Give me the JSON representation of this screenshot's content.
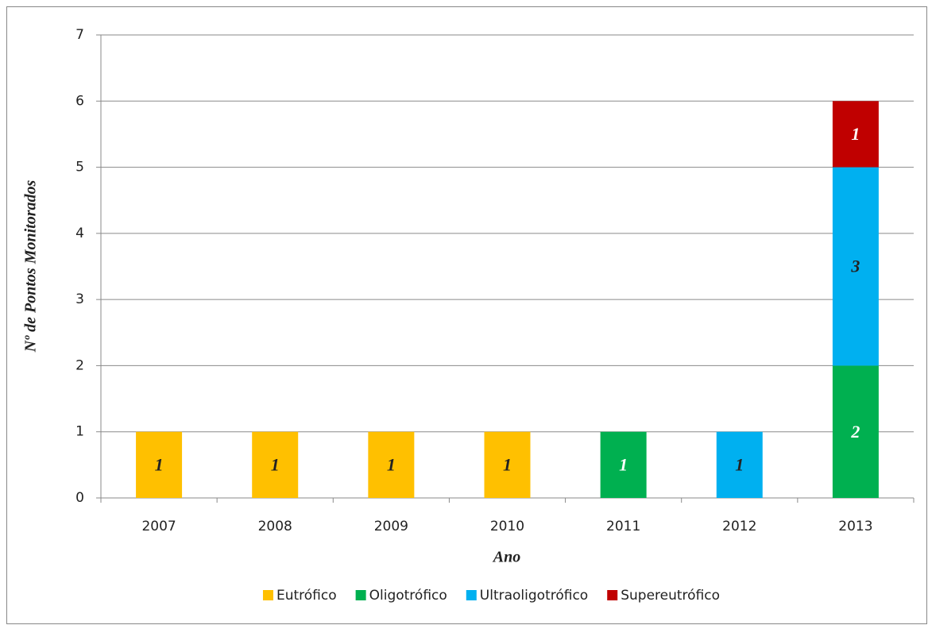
{
  "chart_data": {
    "type": "stacked_bar",
    "x_label": "Ano",
    "y_label": "Nº de Pontos Monitorados",
    "categories": [
      "2007",
      "2008",
      "2009",
      "2010",
      "2011",
      "2012",
      "2013"
    ],
    "series": [
      {
        "name": "Eutrófico",
        "color": "#ffc000",
        "label_color": "#222222",
        "values": [
          1,
          1,
          1,
          1,
          null,
          null,
          null
        ]
      },
      {
        "name": "Oligotrófico",
        "color": "#00b050",
        "label_color": "#ffffff",
        "values": [
          null,
          null,
          null,
          null,
          1,
          null,
          2
        ]
      },
      {
        "name": "Ultraoligotrófico",
        "color": "#00b0f0",
        "label_color": "#222222",
        "values": [
          null,
          null,
          null,
          null,
          null,
          1,
          3
        ]
      },
      {
        "name": "Supereutrófico",
        "color": "#c00000",
        "label_color": "#ffffff",
        "values": [
          null,
          null,
          null,
          null,
          null,
          null,
          1
        ]
      }
    ],
    "ylim": [
      0,
      7
    ],
    "yticks": [
      0,
      1,
      2,
      3,
      4,
      5,
      6,
      7
    ],
    "grid": true,
    "legend": "bottom"
  }
}
